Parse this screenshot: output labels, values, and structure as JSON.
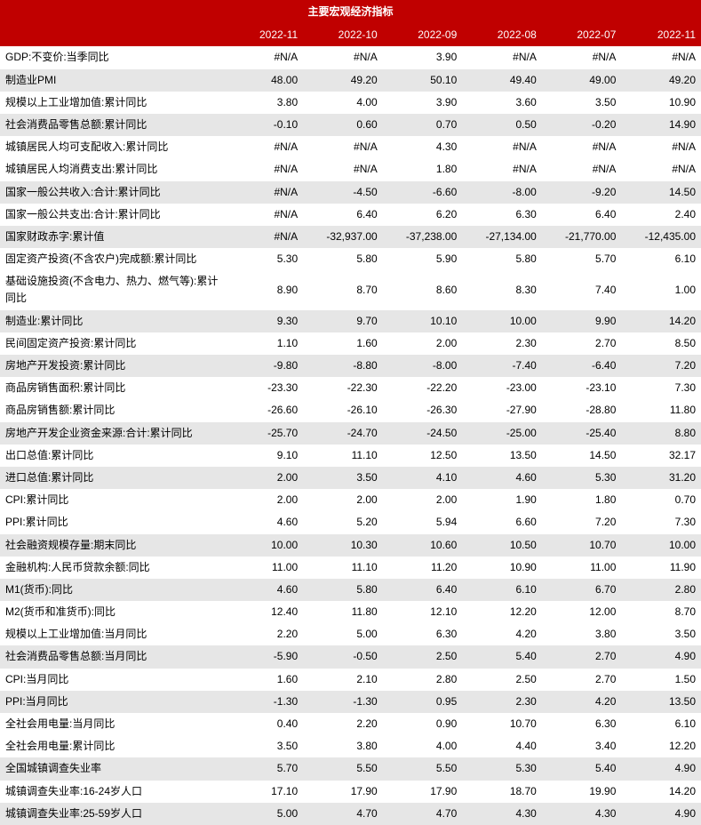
{
  "title": "主要宏观经济指标",
  "columns": [
    "2022-11",
    "2022-10",
    "2022-09",
    "2022-08",
    "2022-07",
    "2022-11"
  ],
  "colors": {
    "header_bg": "#c00000",
    "header_fg": "#ffffff",
    "alt_row_bg": "#e6e6e6",
    "text": "#000000",
    "bg": "#ffffff"
  },
  "fontsize": 12,
  "rows": [
    {
      "label": "GDP:不变价:当季同比",
      "values": [
        "#N/A",
        "#N/A",
        "3.90",
        "#N/A",
        "#N/A",
        "#N/A"
      ],
      "alt": false
    },
    {
      "label": "制造业PMI",
      "values": [
        "48.00",
        "49.20",
        "50.10",
        "49.40",
        "49.00",
        "49.20"
      ],
      "alt": true
    },
    {
      "label": "规模以上工业增加值:累计同比",
      "values": [
        "3.80",
        "4.00",
        "3.90",
        "3.60",
        "3.50",
        "10.90"
      ],
      "alt": false
    },
    {
      "label": "社会消费品零售总额:累计同比",
      "values": [
        "-0.10",
        "0.60",
        "0.70",
        "0.50",
        "-0.20",
        "14.90"
      ],
      "alt": true
    },
    {
      "label": "城镇居民人均可支配收入:累计同比",
      "values": [
        "#N/A",
        "#N/A",
        "4.30",
        "#N/A",
        "#N/A",
        "#N/A"
      ],
      "alt": false
    },
    {
      "label": "城镇居民人均消费支出:累计同比",
      "values": [
        "#N/A",
        "#N/A",
        "1.80",
        "#N/A",
        "#N/A",
        "#N/A"
      ],
      "alt": false
    },
    {
      "label": "国家一般公共收入:合计:累计同比",
      "values": [
        "#N/A",
        "-4.50",
        "-6.60",
        "-8.00",
        "-9.20",
        "14.50"
      ],
      "alt": true
    },
    {
      "label": "国家一般公共支出:合计:累计同比",
      "values": [
        "#N/A",
        "6.40",
        "6.20",
        "6.30",
        "6.40",
        "2.40"
      ],
      "alt": false
    },
    {
      "label": "国家财政赤字:累计值",
      "values": [
        "#N/A",
        "-32,937.00",
        "-37,238.00",
        "-27,134.00",
        "-21,770.00",
        "-12,435.00"
      ],
      "alt": true
    },
    {
      "label": "固定资产投资(不含农户)完成额:累计同比",
      "values": [
        "5.30",
        "5.80",
        "5.90",
        "5.80",
        "5.70",
        "6.10"
      ],
      "alt": false
    },
    {
      "label": "基础设施投资(不含电力、热力、燃气等):累计同比",
      "values": [
        "8.90",
        "8.70",
        "8.60",
        "8.30",
        "7.40",
        "1.00"
      ],
      "alt": false
    },
    {
      "label": "制造业:累计同比",
      "values": [
        "9.30",
        "9.70",
        "10.10",
        "10.00",
        "9.90",
        "14.20"
      ],
      "alt": true
    },
    {
      "label": "民间固定资产投资:累计同比",
      "values": [
        "1.10",
        "1.60",
        "2.00",
        "2.30",
        "2.70",
        "8.50"
      ],
      "alt": false
    },
    {
      "label": "房地产开发投资:累计同比",
      "values": [
        "-9.80",
        "-8.80",
        "-8.00",
        "-7.40",
        "-6.40",
        "7.20"
      ],
      "alt": true
    },
    {
      "label": "商品房销售面积:累计同比",
      "values": [
        "-23.30",
        "-22.30",
        "-22.20",
        "-23.00",
        "-23.10",
        "7.30"
      ],
      "alt": false
    },
    {
      "label": "商品房销售额:累计同比",
      "values": [
        "-26.60",
        "-26.10",
        "-26.30",
        "-27.90",
        "-28.80",
        "11.80"
      ],
      "alt": false
    },
    {
      "label": "房地产开发企业资金来源:合计:累计同比",
      "values": [
        "-25.70",
        "-24.70",
        "-24.50",
        "-25.00",
        "-25.40",
        "8.80"
      ],
      "alt": true
    },
    {
      "label": "出口总值:累计同比",
      "values": [
        "9.10",
        "11.10",
        "12.50",
        "13.50",
        "14.50",
        "32.17"
      ],
      "alt": false
    },
    {
      "label": "进口总值:累计同比",
      "values": [
        "2.00",
        "3.50",
        "4.10",
        "4.60",
        "5.30",
        "31.20"
      ],
      "alt": true
    },
    {
      "label": "CPI:累计同比",
      "values": [
        "2.00",
        "2.00",
        "2.00",
        "1.90",
        "1.80",
        "0.70"
      ],
      "alt": false
    },
    {
      "label": "PPI:累计同比",
      "values": [
        "4.60",
        "5.20",
        "5.94",
        "6.60",
        "7.20",
        "7.30"
      ],
      "alt": false
    },
    {
      "label": "社会融资规模存量:期末同比",
      "values": [
        "10.00",
        "10.30",
        "10.60",
        "10.50",
        "10.70",
        "10.00"
      ],
      "alt": true
    },
    {
      "label": "金融机构:人民币贷款余额:同比",
      "values": [
        "11.00",
        "11.10",
        "11.20",
        "10.90",
        "11.00",
        "11.90"
      ],
      "alt": false
    },
    {
      "label": "M1(货币):同比",
      "values": [
        "4.60",
        "5.80",
        "6.40",
        "6.10",
        "6.70",
        "2.80"
      ],
      "alt": true
    },
    {
      "label": "M2(货币和准货币):同比",
      "values": [
        "12.40",
        "11.80",
        "12.10",
        "12.20",
        "12.00",
        "8.70"
      ],
      "alt": false
    },
    {
      "label": "规模以上工业增加值:当月同比",
      "values": [
        "2.20",
        "5.00",
        "6.30",
        "4.20",
        "3.80",
        "3.50"
      ],
      "alt": false
    },
    {
      "label": "社会消费品零售总额:当月同比",
      "values": [
        "-5.90",
        "-0.50",
        "2.50",
        "5.40",
        "2.70",
        "4.90"
      ],
      "alt": true
    },
    {
      "label": "CPI:当月同比",
      "values": [
        "1.60",
        "2.10",
        "2.80",
        "2.50",
        "2.70",
        "1.50"
      ],
      "alt": false
    },
    {
      "label": "PPI:当月同比",
      "values": [
        "-1.30",
        "-1.30",
        "0.95",
        "2.30",
        "4.20",
        "13.50"
      ],
      "alt": true
    },
    {
      "label": "全社会用电量:当月同比",
      "values": [
        "0.40",
        "2.20",
        "0.90",
        "10.70",
        "6.30",
        "6.10"
      ],
      "alt": false
    },
    {
      "label": "全社会用电量:累计同比",
      "values": [
        "3.50",
        "3.80",
        "4.00",
        "4.40",
        "3.40",
        "12.20"
      ],
      "alt": false
    },
    {
      "label": "全国城镇调查失业率",
      "values": [
        "5.70",
        "5.50",
        "5.50",
        "5.30",
        "5.40",
        "4.90"
      ],
      "alt": true
    },
    {
      "label": "城镇调查失业率:16-24岁人口",
      "values": [
        "17.10",
        "17.90",
        "17.90",
        "18.70",
        "19.90",
        "14.20"
      ],
      "alt": false
    },
    {
      "label": "城镇调查失业率:25-59岁人口",
      "values": [
        "5.00",
        "4.70",
        "4.70",
        "4.30",
        "4.30",
        "4.90"
      ],
      "alt": true
    }
  ]
}
